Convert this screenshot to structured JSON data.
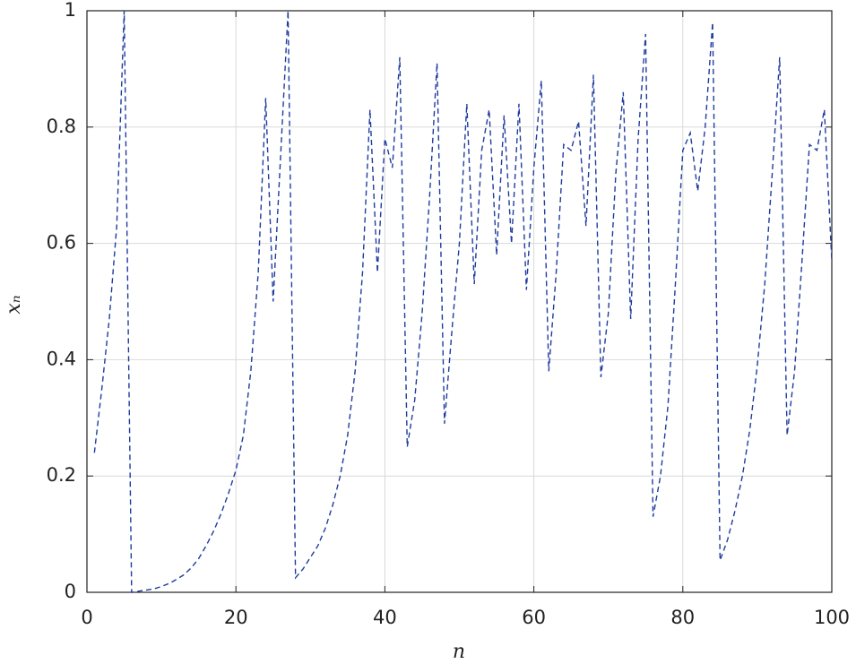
{
  "chart_data": {
    "type": "line",
    "xlabel": "n",
    "ylabel": "xₙ",
    "x": [
      1,
      2,
      3,
      4,
      5,
      6,
      7,
      8,
      9,
      10,
      11,
      12,
      13,
      14,
      15,
      16,
      17,
      18,
      19,
      20,
      21,
      22,
      23,
      24,
      25,
      26,
      27,
      28,
      29,
      30,
      31,
      32,
      33,
      34,
      35,
      36,
      37,
      38,
      39,
      40,
      41,
      42,
      43,
      44,
      45,
      46,
      47,
      48,
      49,
      50,
      51,
      52,
      53,
      54,
      55,
      56,
      57,
      58,
      59,
      60,
      61,
      62,
      63,
      64,
      65,
      66,
      67,
      68,
      69,
      70,
      71,
      72,
      73,
      74,
      75,
      76,
      77,
      78,
      79,
      80,
      81,
      82,
      83,
      84,
      85,
      86,
      87,
      88,
      89,
      90,
      91,
      92,
      93,
      94,
      95,
      96,
      97,
      98,
      99,
      100
    ],
    "values": [
      0.24,
      0.35,
      0.47,
      0.63,
      1.0,
      0.0,
      0.002,
      0.004,
      0.006,
      0.01,
      0.015,
      0.022,
      0.03,
      0.042,
      0.058,
      0.08,
      0.105,
      0.135,
      0.17,
      0.21,
      0.27,
      0.38,
      0.55,
      0.85,
      0.5,
      0.75,
      1.0,
      0.025,
      0.04,
      0.06,
      0.08,
      0.11,
      0.15,
      0.2,
      0.27,
      0.38,
      0.55,
      0.83,
      0.55,
      0.78,
      0.73,
      0.92,
      0.25,
      0.33,
      0.48,
      0.68,
      0.91,
      0.29,
      0.45,
      0.6,
      0.84,
      0.53,
      0.76,
      0.83,
      0.58,
      0.82,
      0.6,
      0.84,
      0.52,
      0.73,
      0.88,
      0.38,
      0.55,
      0.77,
      0.76,
      0.81,
      0.63,
      0.89,
      0.37,
      0.48,
      0.72,
      0.86,
      0.47,
      0.78,
      0.96,
      0.13,
      0.2,
      0.32,
      0.53,
      0.76,
      0.79,
      0.69,
      0.8,
      0.98,
      0.055,
      0.09,
      0.14,
      0.2,
      0.28,
      0.39,
      0.53,
      0.72,
      0.92,
      0.27,
      0.38,
      0.57,
      0.77,
      0.76,
      0.83,
      0.57
    ],
    "color": "#1f3c9e",
    "dashed": true,
    "xlim": [
      0,
      100
    ],
    "xticks": [
      0,
      20,
      40,
      60,
      80,
      100
    ],
    "ylim": [
      0,
      1
    ],
    "yticks": [
      0,
      0.2,
      0.4,
      0.6,
      0.8,
      1
    ],
    "grid": true
  }
}
